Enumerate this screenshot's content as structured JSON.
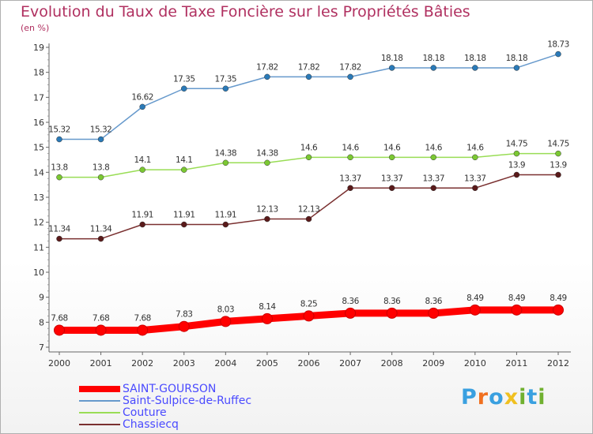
{
  "title": "Evolution du Taux de Taxe Foncière sur les Propriétés Bâties",
  "subtitle": "(en %)",
  "logo": {
    "letters": [
      "P",
      "r",
      "o",
      "x",
      "i",
      "t",
      "i"
    ],
    "colors": [
      "#3aa0e0",
      "#f07020",
      "#3aa0e0",
      "#f0c020",
      "#70b030",
      "#3aa0e0",
      "#70b030"
    ]
  },
  "chart_data": {
    "type": "line",
    "title": "Evolution du Taux de Taxe Foncière sur les Propriétés Bâties",
    "ylabel": "(en %)",
    "x": [
      "2000",
      "2001",
      "2002",
      "2003",
      "2004",
      "2005",
      "2006",
      "2007",
      "2008",
      "2009",
      "2010",
      "2011",
      "2012"
    ],
    "ylim": [
      7,
      19
    ],
    "yticks": [
      "7",
      "8",
      "9",
      "10",
      "11",
      "12",
      "13",
      "14",
      "15",
      "16",
      "17",
      "18",
      "19"
    ],
    "grid": false,
    "legend_position": "bottom-left",
    "series": [
      {
        "name": "SAINT-GOURSON",
        "color": "#ff0000",
        "emphasis": true,
        "values": [
          7.68,
          7.68,
          7.68,
          7.83,
          8.03,
          8.14,
          8.25,
          8.36,
          8.36,
          8.36,
          8.49,
          8.49,
          8.49
        ],
        "labels": [
          "7.68",
          "7.68",
          "7.68",
          "7.83",
          "8.03",
          "8.14",
          "8.25",
          "8.36",
          "8.36",
          "8.36",
          "8.49",
          "8.49",
          "8.49"
        ]
      },
      {
        "name": "Saint-Sulpice-de-Ruffec",
        "color": "#6699cc",
        "marker_color": "#2a7ab8",
        "values": [
          15.32,
          15.32,
          16.62,
          17.35,
          17.35,
          17.82,
          17.82,
          17.82,
          18.18,
          18.18,
          18.18,
          18.18,
          18.73
        ],
        "labels": [
          "15.32",
          "15.32",
          "16.62",
          "17.35",
          "17.35",
          "17.82",
          "17.82",
          "17.82",
          "18.18",
          "18.18",
          "18.18",
          "18.18",
          "18.73"
        ]
      },
      {
        "name": "Couture",
        "color": "#99dd55",
        "marker_color": "#7bc832",
        "values": [
          13.8,
          13.8,
          14.1,
          14.1,
          14.38,
          14.38,
          14.6,
          14.6,
          14.6,
          14.6,
          14.6,
          14.75,
          14.75
        ],
        "labels": [
          "13.8",
          "13.8",
          "14.1",
          "14.1",
          "14.38",
          "14.38",
          "14.6",
          "14.6",
          "14.6",
          "14.6",
          "14.6",
          "14.75",
          "14.75"
        ]
      },
      {
        "name": "Chassiecq",
        "color": "#7a3030",
        "marker_color": "#5a1a1a",
        "values": [
          11.34,
          11.34,
          11.91,
          11.91,
          11.91,
          12.13,
          12.13,
          13.37,
          13.37,
          13.37,
          13.37,
          13.9,
          13.9
        ],
        "labels": [
          "11.34",
          "11.34",
          "11.91",
          "11.91",
          "11.91",
          "12.13",
          "12.13",
          "13.37",
          "13.37",
          "13.37",
          "13.37",
          "13.9",
          "13.9"
        ]
      }
    ]
  }
}
